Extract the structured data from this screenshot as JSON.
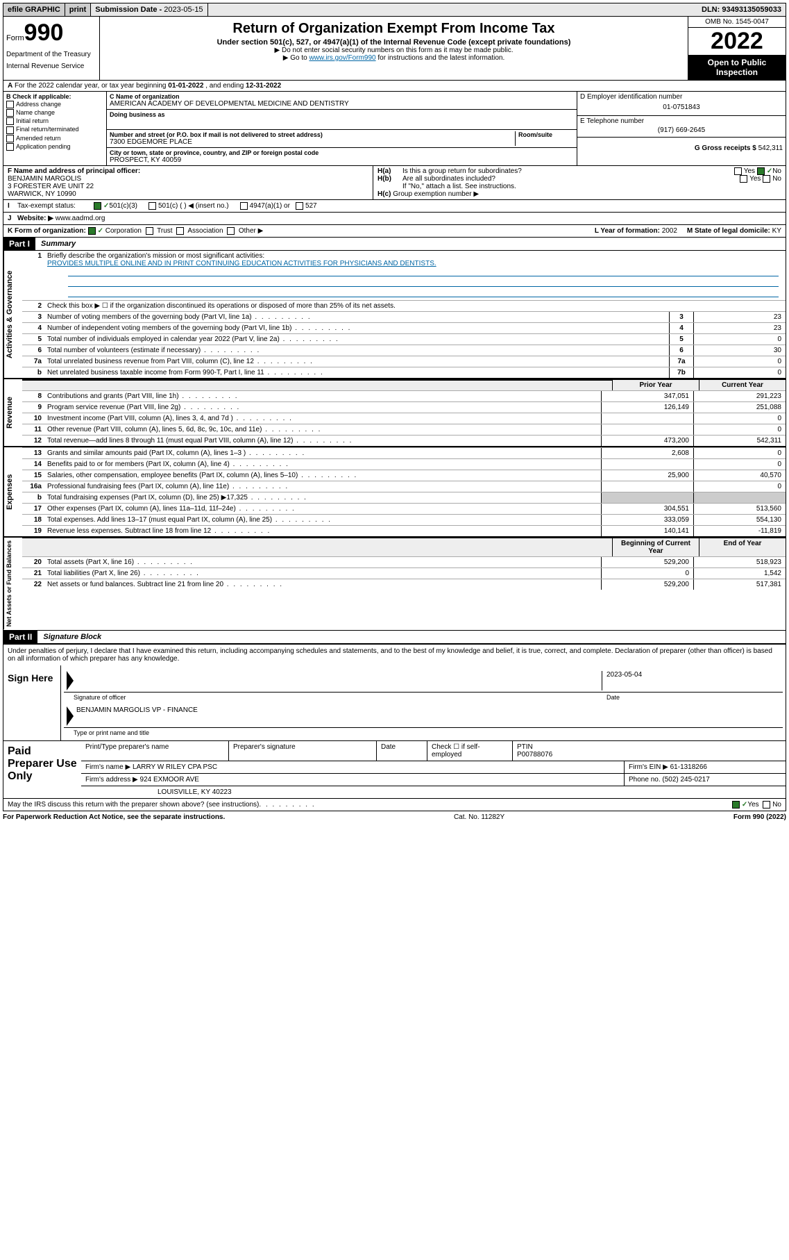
{
  "topbar": {
    "efile": "efile GRAPHIC",
    "print": "print",
    "sub_label": "Submission Date - ",
    "sub_date": "2023-05-15",
    "dln_label": "DLN: ",
    "dln": "93493135059033"
  },
  "header": {
    "form_word": "Form",
    "form_num": "990",
    "dept": "Department of the Treasury",
    "irs": "Internal Revenue Service",
    "title": "Return of Organization Exempt From Income Tax",
    "sub": "Under section 501(c), 527, or 4947(a)(1) of the Internal Revenue Code (except private foundations)",
    "note1": "Do not enter social security numbers on this form as it may be made public.",
    "note2_a": "Go to ",
    "note2_link": "www.irs.gov/Form990",
    "note2_b": " for instructions and the latest information.",
    "omb": "OMB No. 1545-0047",
    "year": "2022",
    "inspection": "Open to Public Inspection"
  },
  "period": {
    "a": "A",
    "text_a": " For the 2022 calendar year, or tax year beginning ",
    "begin": "01-01-2022",
    "text_b": " , and ending ",
    "end": "12-31-2022"
  },
  "col_b": {
    "hdr": "B Check if applicable:",
    "opts": [
      "Address change",
      "Name change",
      "Initial return",
      "Final return/terminated",
      "Amended return",
      "Application pending"
    ]
  },
  "col_c": {
    "c_lbl": "C Name of organization",
    "name": "AMERICAN ACADEMY OF DEVELOPMENTAL MEDICINE AND DENTISTRY",
    "dba_lbl": "Doing business as",
    "addr_lbl": "Number and street (or P.O. box if mail is not delivered to street address)",
    "room_lbl": "Room/suite",
    "addr": "7300 EDGEMORE PLACE",
    "city_lbl": "City or town, state or province, country, and ZIP or foreign postal code",
    "city": "PROSPECT, KY  40059"
  },
  "col_d": {
    "d_lbl": "D Employer identification number",
    "ein": "01-0751843",
    "e_lbl": "E Telephone number",
    "phone": "(917) 669-2645",
    "g_lbl": "G Gross receipts $ ",
    "gross": "542,311"
  },
  "row_f": {
    "f_lbl": "F Name and address of principal officer:",
    "name": "BENJAMIN MARGOLIS",
    "addr1": "3 FORESTER AVE UNIT 22",
    "addr2": "WARWICK, NY  10990"
  },
  "row_h": {
    "ha_lbl": "H(a)",
    "ha_txt": "Is this a group return for subordinates?",
    "hb_lbl": "H(b)",
    "hb_txt": "Are all subordinates included?",
    "hb_note": "If \"No,\" attach a list. See instructions.",
    "hc_lbl": "H(c)",
    "hc_txt": "Group exemption number ▶",
    "yes": "Yes",
    "no": "No"
  },
  "row_i": {
    "lbl": "I",
    "txt": "Tax-exempt status:",
    "o1": "501(c)(3)",
    "o2": "501(c) (  ) ◀ (insert no.)",
    "o3": "4947(a)(1) or",
    "o4": "527"
  },
  "row_j": {
    "lbl": "J",
    "txt": "Website: ▶",
    "val": "www.aadmd.org"
  },
  "row_k": {
    "lbl": "K Form of organization:",
    "o1": "Corporation",
    "o2": "Trust",
    "o3": "Association",
    "o4": "Other ▶",
    "l_lbl": "L Year of formation: ",
    "l_val": "2002",
    "m_lbl": "M State of legal domicile: ",
    "m_val": "KY"
  },
  "part1": {
    "hdr": "Part I",
    "title": "Summary",
    "l1_lbl": "1",
    "l1_txt": "Briefly describe the organization's mission or most significant activities:",
    "l1_val": "PROVIDES MULTIPLE ONLINE AND IN PRINT CONTINUING EDUCATION ACTIVITIES FOR PHYSICIANS AND DENTISTS.",
    "l2_txt": "Check this box ▶ ☐  if the organization discontinued its operations or disposed of more than 25% of its net assets.",
    "sidebars": {
      "activities_governance": "Activities & Governance",
      "revenue": "Revenue",
      "expenses": "Expenses",
      "net_assets": "Net Assets or Fund Balances"
    },
    "col_hdrs": {
      "prior": "Prior Year",
      "current": "Current Year",
      "begin": "Beginning of Current Year",
      "end": "End of Year"
    },
    "lines": [
      {
        "n": "2",
        "desc": "Check this box",
        "box": "",
        "v1": "",
        "v2": ""
      },
      {
        "n": "3",
        "desc": "Number of voting members of the governing body (Part VI, line 1a)",
        "box": "3",
        "v1": "",
        "v2": "23"
      },
      {
        "n": "4",
        "desc": "Number of independent voting members of the governing body (Part VI, line 1b)",
        "box": "4",
        "v1": "",
        "v2": "23"
      },
      {
        "n": "5",
        "desc": "Total number of individuals employed in calendar year 2022 (Part V, line 2a)",
        "box": "5",
        "v1": "",
        "v2": "0"
      },
      {
        "n": "6",
        "desc": "Total number of volunteers (estimate if necessary)",
        "box": "6",
        "v1": "",
        "v2": "30"
      },
      {
        "n": "7a",
        "desc": "Total unrelated business revenue from Part VIII, column (C), line 12",
        "box": "7a",
        "v1": "",
        "v2": "0"
      },
      {
        "n": "b",
        "desc": "Net unrelated business taxable income from Form 990-T, Part I, line 11",
        "box": "7b",
        "v1": "",
        "v2": "0"
      }
    ],
    "revenue_lines": [
      {
        "n": "8",
        "desc": "Contributions and grants (Part VIII, line 1h)",
        "v1": "347,051",
        "v2": "291,223"
      },
      {
        "n": "9",
        "desc": "Program service revenue (Part VIII, line 2g)",
        "v1": "126,149",
        "v2": "251,088"
      },
      {
        "n": "10",
        "desc": "Investment income (Part VIII, column (A), lines 3, 4, and 7d )",
        "v1": "",
        "v2": "0"
      },
      {
        "n": "11",
        "desc": "Other revenue (Part VIII, column (A), lines 5, 6d, 8c, 9c, 10c, and 11e)",
        "v1": "",
        "v2": "0"
      },
      {
        "n": "12",
        "desc": "Total revenue—add lines 8 through 11 (must equal Part VIII, column (A), line 12)",
        "v1": "473,200",
        "v2": "542,311"
      }
    ],
    "expense_lines": [
      {
        "n": "13",
        "desc": "Grants and similar amounts paid (Part IX, column (A), lines 1–3 )",
        "v1": "2,608",
        "v2": "0"
      },
      {
        "n": "14",
        "desc": "Benefits paid to or for members (Part IX, column (A), line 4)",
        "v1": "",
        "v2": "0"
      },
      {
        "n": "15",
        "desc": "Salaries, other compensation, employee benefits (Part IX, column (A), lines 5–10)",
        "v1": "25,900",
        "v2": "40,570"
      },
      {
        "n": "16a",
        "desc": "Professional fundraising fees (Part IX, column (A), line 11e)",
        "v1": "",
        "v2": "0"
      },
      {
        "n": "b",
        "desc": "Total fundraising expenses (Part IX, column (D), line 25) ▶17,325",
        "v1": "",
        "v2": ""
      },
      {
        "n": "17",
        "desc": "Other expenses (Part IX, column (A), lines 11a–11d, 11f–24e)",
        "v1": "304,551",
        "v2": "513,560"
      },
      {
        "n": "18",
        "desc": "Total expenses. Add lines 13–17 (must equal Part IX, column (A), line 25)",
        "v1": "333,059",
        "v2": "554,130"
      },
      {
        "n": "19",
        "desc": "Revenue less expenses. Subtract line 18 from line 12",
        "v1": "140,141",
        "v2": "-11,819"
      }
    ],
    "asset_lines": [
      {
        "n": "20",
        "desc": "Total assets (Part X, line 16)",
        "v1": "529,200",
        "v2": "518,923"
      },
      {
        "n": "21",
        "desc": "Total liabilities (Part X, line 26)",
        "v1": "0",
        "v2": "1,542"
      },
      {
        "n": "22",
        "desc": "Net assets or fund balances. Subtract line 21 from line 20",
        "v1": "529,200",
        "v2": "517,381"
      }
    ]
  },
  "part2": {
    "hdr": "Part II",
    "title": "Signature Block",
    "penalty": "Under penalties of perjury, I declare that I have examined this return, including accompanying schedules and statements, and to the best of my knowledge and belief, it is true, correct, and complete. Declaration of preparer (other than officer) is based on all information of which preparer has any knowledge.",
    "sign_here": "Sign Here",
    "sig_officer": "Signature of officer",
    "date": "Date",
    "date_val": "2023-05-04",
    "officer_name": "BENJAMIN MARGOLIS VP - FINANCE",
    "type_name": "Type or print name and title"
  },
  "preparer": {
    "hdr": "Paid Preparer Use Only",
    "col1": "Print/Type preparer's name",
    "col2": "Preparer's signature",
    "col3": "Date",
    "col4_a": "Check ☐ if self-employed",
    "col5": "PTIN",
    "ptin": "P00788076",
    "firm_name_lbl": "Firm's name    ▶ ",
    "firm_name": "LARRY W RILEY CPA PSC",
    "firm_ein_lbl": "Firm's EIN ▶ ",
    "firm_ein": "61-1318266",
    "firm_addr_lbl": "Firm's address ▶ ",
    "firm_addr1": "924 EXMOOR AVE",
    "firm_addr2": "LOUISVILLE, KY  40223",
    "phone_lbl": "Phone no. ",
    "phone": "(502) 245-0217"
  },
  "footer": {
    "discuss": "May the IRS discuss this return with the preparer shown above? (see instructions)",
    "yes": "Yes",
    "no": "No",
    "paperwork": "For Paperwork Reduction Act Notice, see the separate instructions.",
    "cat": "Cat. No. 11282Y",
    "form": "Form 990 (2022)"
  }
}
